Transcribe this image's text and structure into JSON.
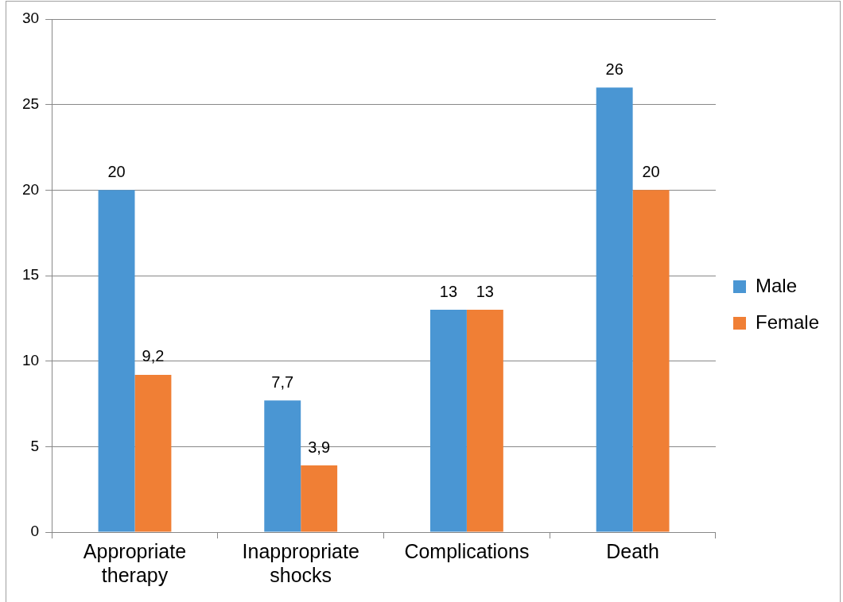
{
  "chart_data": {
    "type": "bar",
    "categories": [
      "Appropriate therapy",
      "Inappropriate shocks",
      "Complications",
      "Death"
    ],
    "series": [
      {
        "name": "Male",
        "color": "#4a96d3",
        "values": [
          20,
          7.7,
          13,
          26
        ],
        "value_labels": [
          "20",
          "7,7",
          "13",
          "26"
        ]
      },
      {
        "name": "Female",
        "color": "#f07f35",
        "values": [
          9.2,
          3.9,
          13,
          20
        ],
        "value_labels": [
          "9,2",
          "3,9",
          "13",
          "20"
        ]
      }
    ],
    "ylim": [
      0,
      30
    ],
    "yticks": [
      0,
      5,
      10,
      15,
      20,
      25,
      30
    ],
    "grid": "y",
    "legend": "right"
  }
}
